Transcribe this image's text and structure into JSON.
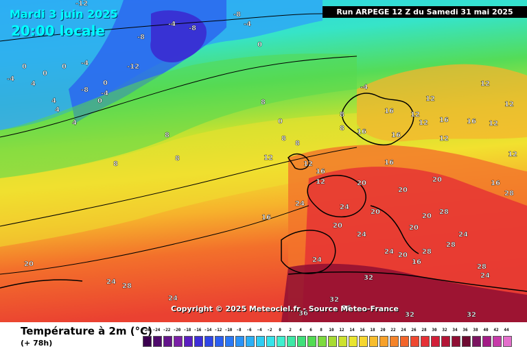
{
  "header": {
    "date": "Mardi 3 juin 2025",
    "time": "20:00 locale",
    "run": "Run ARPEGE 12 Z du Samedi 31 mai 2025"
  },
  "copyright": "Copyright © 2025 Meteociel.fr - Source Meteo-France",
  "legend": {
    "title": "Température à 2m (°C)",
    "subtitle": "(+ 78h)",
    "ticks": [
      "-26",
      "-24",
      "-22",
      "-20",
      "-18",
      "-16",
      "-14",
      "-12",
      "-10",
      "-8",
      "-6",
      "-4",
      "-2",
      "0",
      "2",
      "4",
      "6",
      "8",
      "10",
      "12",
      "14",
      "16",
      "18",
      "20",
      "22",
      "24",
      "26",
      "28",
      "30",
      "32",
      "34",
      "36",
      "38",
      "40",
      "42",
      "44"
    ],
    "colors": [
      "#3b004f",
      "#4e0a6b",
      "#63138a",
      "#7a1fa6",
      "#5a1ec0",
      "#3d2ed8",
      "#2f46e6",
      "#2b5ff0",
      "#2a78f5",
      "#2a93f7",
      "#2bb0f6",
      "#2fcdf3",
      "#36e4ea",
      "#3ff0cf",
      "#3de9a6",
      "#3fe07a",
      "#52dc52",
      "#7ddb3e",
      "#a7dc33",
      "#cde22e",
      "#e9e52f",
      "#f6d730",
      "#f7bd2d",
      "#f7a12a",
      "#f5842a",
      "#f3652b",
      "#ef4830",
      "#e53035",
      "#d11f38",
      "#b31536",
      "#8f0e33",
      "#6e0a31",
      "#7b1460",
      "#a31c86",
      "#c63aa8",
      "#e36fcb"
    ]
  },
  "map_labels": [
    {
      "v": "-12"
    },
    {
      "v": "-8"
    },
    {
      "v": "-4"
    },
    {
      "v": "-8"
    },
    {
      "v": "-4"
    },
    {
      "v": "-8"
    },
    {
      "v": "0"
    },
    {
      "v": "-12"
    },
    {
      "v": "-4"
    },
    {
      "v": "-8"
    },
    {
      "v": "-4"
    },
    {
      "v": "0"
    },
    {
      "v": "0"
    },
    {
      "v": "0"
    },
    {
      "v": "0"
    },
    {
      "v": "4"
    },
    {
      "v": "-4"
    },
    {
      "v": "4"
    },
    {
      "v": "4"
    },
    {
      "v": "0"
    },
    {
      "v": "4"
    },
    {
      "v": "8"
    },
    {
      "v": "8"
    },
    {
      "v": "8"
    },
    {
      "v": "8"
    },
    {
      "v": "8"
    },
    {
      "v": "8"
    },
    {
      "v": "12"
    },
    {
      "v": "12"
    },
    {
      "v": "12"
    },
    {
      "v": "12"
    },
    {
      "v": "12"
    },
    {
      "v": "12"
    },
    {
      "v": "16"
    },
    {
      "v": "16"
    },
    {
      "v": "16"
    },
    {
      "v": "16"
    },
    {
      "v": "16"
    },
    {
      "v": "16"
    },
    {
      "v": "16"
    },
    {
      "v": "16"
    },
    {
      "v": "20"
    },
    {
      "v": "20"
    },
    {
      "v": "20"
    },
    {
      "v": "20"
    },
    {
      "v": "20"
    },
    {
      "v": "20"
    },
    {
      "v": "20"
    },
    {
      "v": "24"
    },
    {
      "v": "24"
    },
    {
      "v": "24"
    },
    {
      "v": "24"
    },
    {
      "v": "24"
    },
    {
      "v": "24"
    },
    {
      "v": "28"
    },
    {
      "v": "28"
    },
    {
      "v": "28"
    },
    {
      "v": "28"
    },
    {
      "v": "28"
    },
    {
      "v": "32"
    },
    {
      "v": "32"
    },
    {
      "v": "32"
    },
    {
      "v": "36"
    },
    {
      "v": "36"
    },
    {
      "v": "24"
    },
    {
      "v": "20"
    },
    {
      "v": "24"
    },
    {
      "v": "28"
    },
    {
      "v": "32"
    },
    {
      "v": "12"
    },
    {
      "v": "12"
    },
    {
      "v": "12"
    },
    {
      "v": "16"
    },
    {
      "v": "12"
    },
    {
      "v": "24"
    },
    {
      "v": "20"
    },
    {
      "v": "16"
    },
    {
      "v": "12"
    },
    {
      "v": "8"
    },
    {
      "v": "8"
    },
    {
      "v": "0"
    },
    {
      "v": "-4"
    }
  ]
}
